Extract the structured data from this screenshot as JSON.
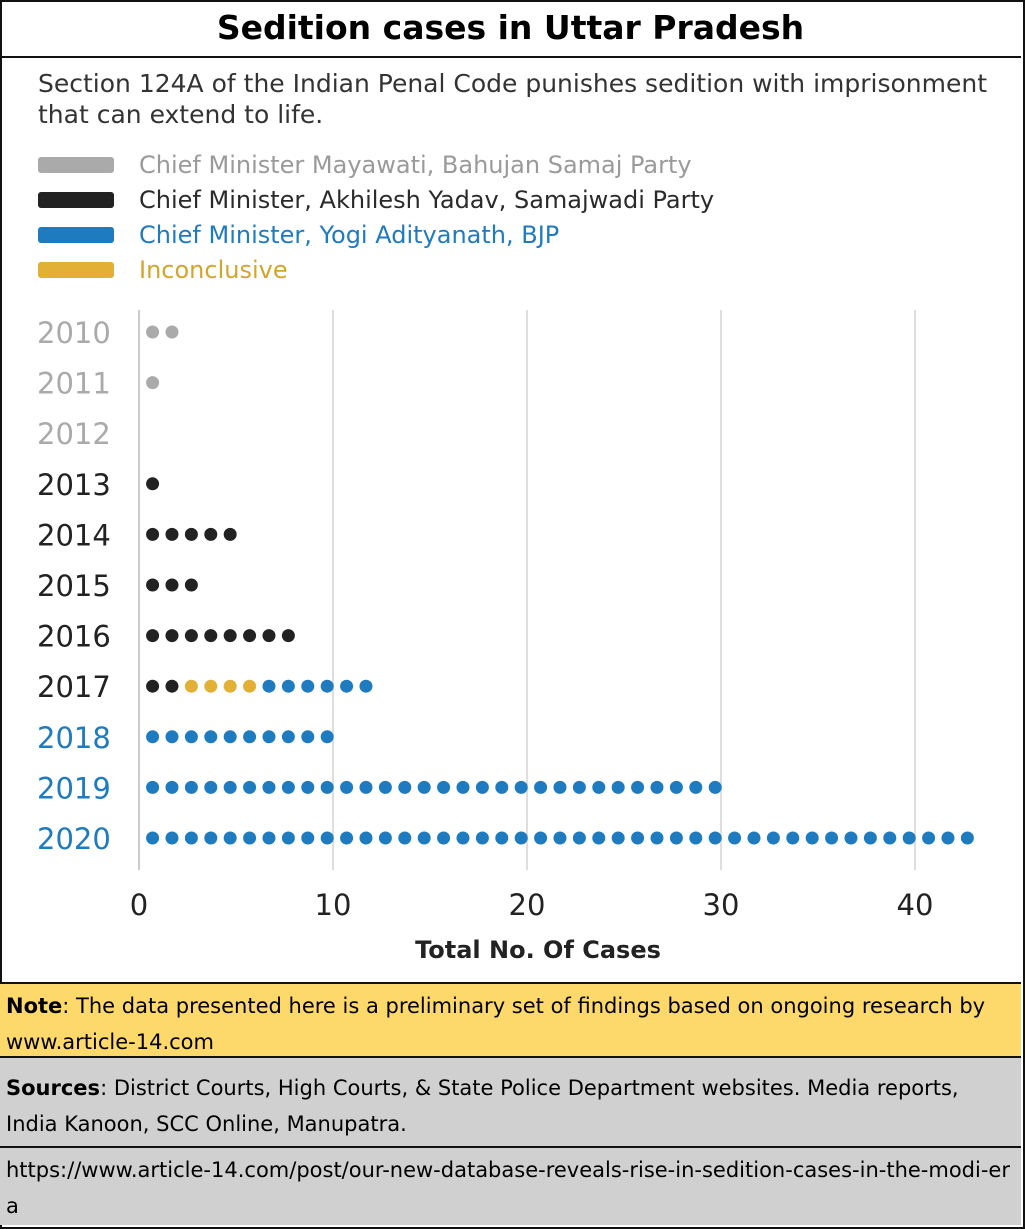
{
  "title": "Sedition cases in Uttar Pradesh",
  "subtitle": "Section 124A of the Indian Penal Code punishes sedition with imprisonment that can extend to life.",
  "legend": [
    {
      "label": "Chief Minister Mayawati, Bahujan Samaj Party",
      "color": "#aaaaaa",
      "text_color": "#9a9a9a"
    },
    {
      "label": "Chief Minister, Akhilesh Yadav, Samajwadi Party",
      "color": "#222222",
      "text_color": "#2a2a2a"
    },
    {
      "label": "Chief Minister, Yogi Adityanath, BJP",
      "color": "#1f7bbf",
      "text_color": "#1f7bbf"
    },
    {
      "label": "Inconclusive",
      "color": "#e2b035",
      "text_color": "#d4a52c"
    }
  ],
  "chart_data": {
    "type": "scatter",
    "xlabel": "Total No. Of Cases",
    "xlim": [
      0,
      43
    ],
    "xticks": [
      0,
      10,
      20,
      30,
      40
    ],
    "grid": true,
    "categories": [
      "2010",
      "2011",
      "2012",
      "2013",
      "2014",
      "2015",
      "2016",
      "2017",
      "2018",
      "2019",
      "2020"
    ],
    "series": [
      {
        "name": "Chief Minister Mayawati, Bahujan Samaj Party",
        "color": "#aaaaaa",
        "values": [
          2,
          1,
          0,
          0,
          0,
          0,
          0,
          0,
          0,
          0,
          0
        ]
      },
      {
        "name": "Chief Minister, Akhilesh Yadav, Samajwadi Party",
        "color": "#222222",
        "values": [
          0,
          0,
          0,
          1,
          5,
          3,
          8,
          2,
          0,
          0,
          0
        ]
      },
      {
        "name": "Inconclusive",
        "color": "#e2b035",
        "values": [
          0,
          0,
          0,
          0,
          0,
          0,
          0,
          4,
          0,
          0,
          0
        ]
      },
      {
        "name": "Chief Minister, Yogi Adityanath, BJP",
        "color": "#1f7bbf",
        "values": [
          0,
          0,
          0,
          0,
          0,
          0,
          0,
          6,
          10,
          30,
          43
        ]
      }
    ],
    "year_label_colors": [
      "#aaaaaa",
      "#aaaaaa",
      "#aaaaaa",
      "#222222",
      "#222222",
      "#222222",
      "#222222",
      "#222222",
      "#1f7bbf",
      "#1f7bbf",
      "#1f7bbf"
    ]
  },
  "note": {
    "label": "Note",
    "text": ": The data presented here is a preliminary set of findings based on ongoing research by www.article-14.com"
  },
  "sources": {
    "label": "Sources",
    "text": ": District Courts, High Courts, & State Police Department websites. Media reports, India Kanoon, SCC Online, Manupatra."
  },
  "url": "https://www.article-14.com/post/our-new-database-reveals-rise-in-sedition-cases-in-the-modi-era"
}
